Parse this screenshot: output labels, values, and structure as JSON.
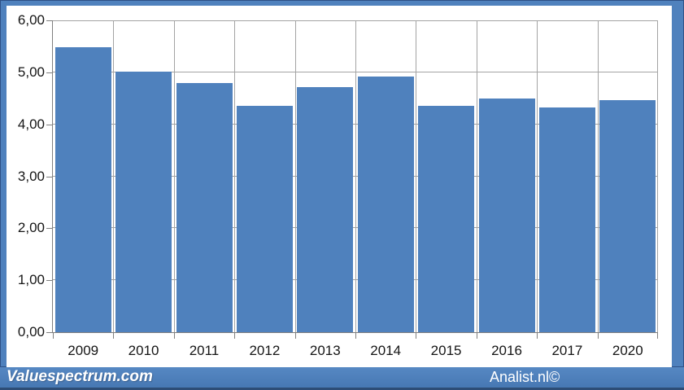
{
  "chart_data": {
    "type": "bar",
    "title": "",
    "xlabel": "",
    "ylabel": "",
    "categories": [
      "2009",
      "2010",
      "2011",
      "2012",
      "2013",
      "2014",
      "2015",
      "2016",
      "2017",
      "2020"
    ],
    "values": [
      5.49,
      5.01,
      4.79,
      4.35,
      4.72,
      4.92,
      4.35,
      4.5,
      4.32,
      4.47
    ],
    "ylim": [
      0,
      6
    ],
    "ytick_labels": [
      "0,00",
      "1,00",
      "2,00",
      "3,00",
      "4,00",
      "5,00",
      "6,00"
    ],
    "grid": "horizontal-and-vertical",
    "legend_position": "none",
    "bar_color": "#4f81bd",
    "gridline_color": "#a3a3a3",
    "axis_color": "#7f7f7f",
    "frame_color": "#4f81bd",
    "label_color": "#151515"
  },
  "footer": {
    "brand": "Valuespectrum.com",
    "credit": "Analist.nl©",
    "bar_color": "#4a7dba",
    "accent_color": "#2d4d76",
    "text_color": "#ffffff"
  }
}
